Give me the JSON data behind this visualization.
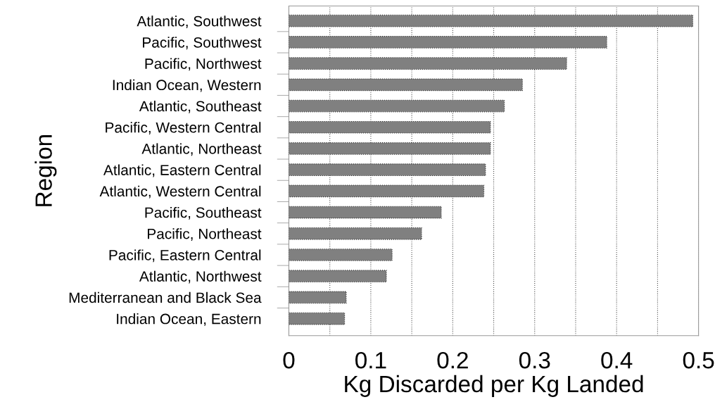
{
  "chart_data": {
    "type": "bar",
    "orientation": "horizontal",
    "xlabel": "Kg Discarded per Kg Landed",
    "ylabel": "Region",
    "categories": [
      "Atlantic, Southwest",
      "Pacific, Southwest",
      "Pacific, Northwest",
      "Indian Ocean, Western",
      "Atlantic, Southeast",
      "Pacific, Western Central",
      "Atlantic, Northeast",
      "Atlantic, Eastern Central",
      "Atlantic, Western Central",
      "Pacific, Southeast",
      "Pacific, Northeast",
      "Pacific, Eastern Central",
      "Atlantic, Northwest",
      "Mediterranean and Black Sea",
      "Indian Ocean, Eastern"
    ],
    "values": [
      0.493,
      0.388,
      0.339,
      0.285,
      0.263,
      0.246,
      0.246,
      0.24,
      0.238,
      0.186,
      0.162,
      0.126,
      0.119,
      0.07,
      0.068
    ],
    "color": "#808080",
    "xlim": [
      0,
      0.5
    ],
    "xticks": [
      0,
      {
        "value": 0.05,
        "label": null
      },
      0.1,
      {
        "value": 0.15,
        "label": null
      },
      0.2,
      {
        "value": 0.25,
        "label": null
      },
      0.3,
      {
        "value": 0.35,
        "label": null
      },
      0.4,
      {
        "value": 0.45,
        "label": null
      },
      0.5
    ],
    "grid": "x"
  }
}
